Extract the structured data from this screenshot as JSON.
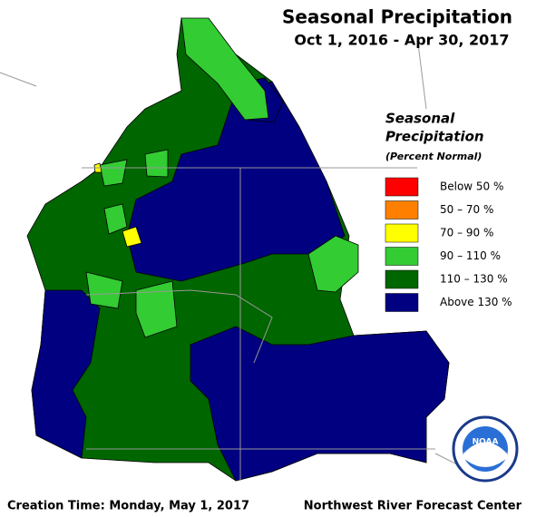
{
  "title": "Seasonal Precipitation",
  "subtitle": "Oct 1, 2016 - Apr 30, 2017",
  "legend": {
    "title": [
      "Seasonal",
      "Precipitation"
    ],
    "subtitle": "(Percent Normal)",
    "items": [
      {
        "label": "Below 50 %",
        "color": "#ff0000"
      },
      {
        "label": "50 – 70 %",
        "color": "#ff8000"
      },
      {
        "label": "70 – 90 %",
        "color": "#ffff00"
      },
      {
        "label": "90 – 110 %",
        "color": "#33cc33"
      },
      {
        "label": "110 – 130 %",
        "color": "#006600"
      },
      {
        "label": "Above 130 %",
        "color": "#000080"
      }
    ]
  },
  "footer": {
    "left": "Creation Time: Monday, May 1, 2017",
    "right": "Northwest River Forecast Center"
  },
  "logo": "NOAA"
}
